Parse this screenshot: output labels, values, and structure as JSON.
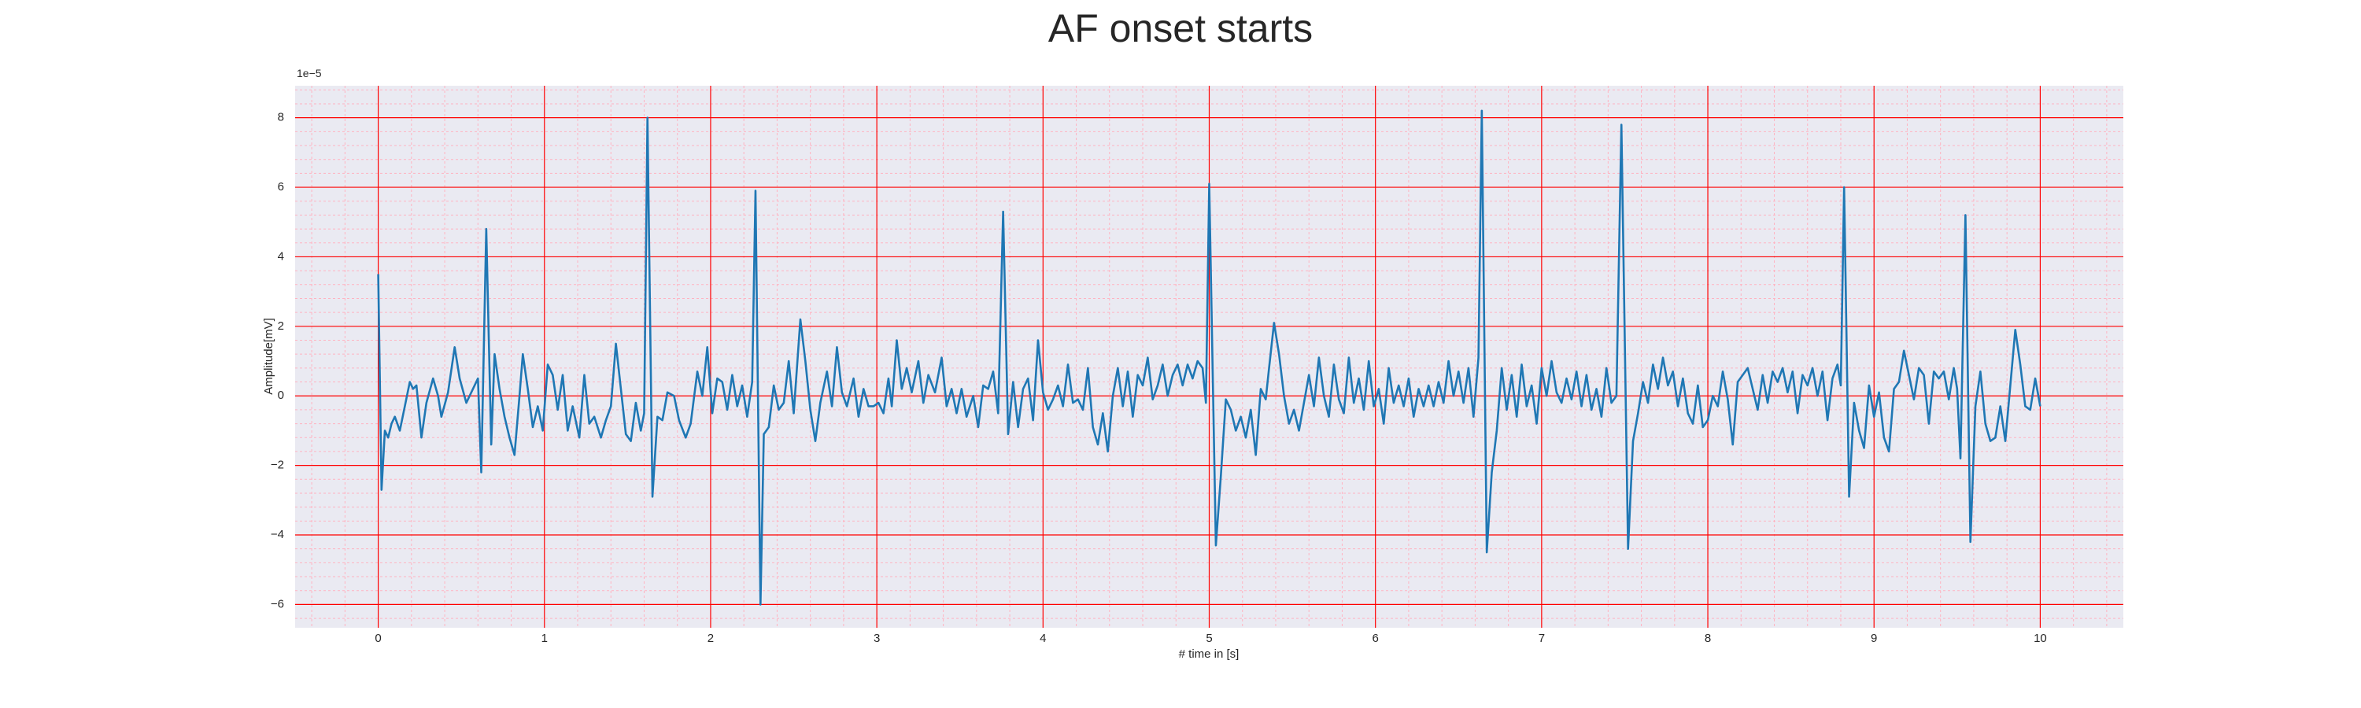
{
  "chart_data": {
    "type": "line",
    "title": "AF onset starts",
    "xlabel": "# time in [s]",
    "ylabel": "Amplitude[mV]",
    "y_offset_text": "1e−5",
    "xlim": [
      -0.5,
      10.5
    ],
    "ylim": [
      -6.67,
      8.92
    ],
    "xticks": [
      0,
      1,
      2,
      3,
      4,
      5,
      6,
      7,
      8,
      9,
      10
    ],
    "yticks": [
      {
        "value": -6,
        "label": "−6"
      },
      {
        "value": -4,
        "label": "−4"
      },
      {
        "value": -2,
        "label": "−2"
      },
      0,
      2,
      4,
      6,
      8
    ],
    "minor_xticks": [
      -0.4,
      -0.2,
      0.2,
      0.4,
      0.6,
      0.8,
      1.2,
      1.4,
      1.6,
      1.8,
      2.2,
      2.4,
      2.6,
      2.8,
      3.2,
      3.4,
      3.6,
      3.8,
      4.2,
      4.4,
      4.6,
      4.8,
      5.2,
      5.4,
      5.6,
      5.8,
      6.2,
      6.4,
      6.6,
      6.8,
      7.2,
      7.4,
      7.6,
      7.8,
      8.2,
      8.4,
      8.6,
      8.8,
      9.2,
      9.4,
      9.6,
      9.8,
      10.2,
      10.4
    ],
    "minor_yticks": [
      -6.4,
      -5.6,
      -5.2,
      -4.8,
      -4.4,
      -3.6,
      -3.2,
      -2.8,
      -2.4,
      -1.6,
      -1.2,
      -0.8,
      -0.4,
      0.4,
      0.8,
      1.2,
      1.6,
      2.4,
      2.8,
      3.2,
      3.6,
      4.4,
      4.8,
      5.2,
      5.6,
      6.4,
      6.8,
      7.2,
      7.6,
      8.4,
      8.8
    ],
    "grid": true,
    "grid_color": "#ff0000",
    "minor_grid_color": "#ffb3c1",
    "background": "#eaeaf2",
    "x": [
      0,
      0.02,
      0.04,
      0.06,
      0.08,
      0.1,
      0.13,
      0.16,
      0.19,
      0.21,
      0.23,
      0.26,
      0.29,
      0.33,
      0.36,
      0.38,
      0.42,
      0.46,
      0.49,
      0.53,
      0.56,
      0.6,
      0.62,
      0.65,
      0.68,
      0.7,
      0.73,
      0.76,
      0.79,
      0.82,
      0.85,
      0.87,
      0.9,
      0.93,
      0.96,
      0.99,
      1.02,
      1.05,
      1.08,
      1.11,
      1.14,
      1.17,
      1.21,
      1.24,
      1.27,
      1.3,
      1.34,
      1.37,
      1.4,
      1.43,
      1.46,
      1.49,
      1.52,
      1.55,
      1.58,
      1.6,
      1.62,
      1.65,
      1.68,
      1.71,
      1.74,
      1.78,
      1.81,
      1.85,
      1.88,
      1.92,
      1.95,
      1.98,
      2.01,
      2.04,
      2.07,
      2.1,
      2.13,
      2.16,
      2.19,
      2.22,
      2.25,
      2.27,
      2.3,
      2.32,
      2.35,
      2.38,
      2.41,
      2.44,
      2.47,
      2.5,
      2.54,
      2.57,
      2.6,
      2.63,
      2.66,
      2.7,
      2.73,
      2.76,
      2.79,
      2.82,
      2.86,
      2.89,
      2.92,
      2.95,
      2.98,
      3.01,
      3.04,
      3.07,
      3.09,
      3.12,
      3.15,
      3.18,
      3.21,
      3.25,
      3.28,
      3.31,
      3.35,
      3.39,
      3.42,
      3.45,
      3.48,
      3.51,
      3.54,
      3.58,
      3.61,
      3.64,
      3.67,
      3.7,
      3.73,
      3.76,
      3.79,
      3.82,
      3.85,
      3.88,
      3.91,
      3.94,
      3.97,
      4.0,
      4.03,
      4.06,
      4.09,
      4.12,
      4.15,
      4.18,
      4.21,
      4.24,
      4.27,
      4.3,
      4.33,
      4.36,
      4.39,
      4.42,
      4.45,
      4.48,
      4.51,
      4.54,
      4.57,
      4.6,
      4.63,
      4.66,
      4.69,
      4.72,
      4.75,
      4.78,
      4.81,
      4.84,
      4.87,
      4.9,
      4.93,
      4.96,
      4.98,
      5.0,
      5.04,
      5.07,
      5.1,
      5.13,
      5.16,
      5.19,
      5.22,
      5.25,
      5.28,
      5.31,
      5.34,
      5.36,
      5.39,
      5.42,
      5.45,
      5.48,
      5.51,
      5.54,
      5.57,
      5.6,
      5.63,
      5.66,
      5.69,
      5.72,
      5.75,
      5.78,
      5.81,
      5.84,
      5.87,
      5.9,
      5.93,
      5.96,
      5.99,
      6.02,
      6.05,
      6.08,
      6.11,
      6.14,
      6.17,
      6.2,
      6.23,
      6.26,
      6.29,
      6.32,
      6.35,
      6.38,
      6.41,
      6.44,
      6.47,
      6.5,
      6.53,
      6.56,
      6.59,
      6.62,
      6.64,
      6.67,
      6.7,
      6.73,
      6.76,
      6.79,
      6.82,
      6.85,
      6.88,
      6.91,
      6.94,
      6.97,
      7.0,
      7.03,
      7.06,
      7.09,
      7.12,
      7.15,
      7.18,
      7.21,
      7.24,
      7.27,
      7.3,
      7.33,
      7.36,
      7.39,
      7.42,
      7.45,
      7.48,
      7.52,
      7.55,
      7.58,
      7.61,
      7.64,
      7.67,
      7.7,
      7.73,
      7.76,
      7.79,
      7.82,
      7.85,
      7.88,
      7.91,
      7.94,
      7.97,
      8.0,
      8.03,
      8.06,
      8.09,
      8.12,
      8.15,
      8.18,
      8.21,
      8.24,
      8.27,
      8.3,
      8.33,
      8.36,
      8.39,
      8.42,
      8.45,
      8.48,
      8.51,
      8.54,
      8.57,
      8.6,
      8.63,
      8.66,
      8.69,
      8.72,
      8.75,
      8.78,
      8.8,
      8.82,
      8.85,
      8.88,
      8.91,
      8.94,
      8.97,
      9.0,
      9.03,
      9.06,
      9.09,
      9.12,
      9.15,
      9.18,
      9.21,
      9.24,
      9.27,
      9.3,
      9.33,
      9.36,
      9.39,
      9.42,
      9.45,
      9.48,
      9.5,
      9.52,
      9.55,
      9.58,
      9.61,
      9.64,
      9.67,
      9.7,
      9.73,
      9.76,
      9.79,
      9.82,
      9.85,
      9.88,
      9.91,
      9.94,
      9.97,
      10.0
    ],
    "series": [
      {
        "color": "#1f77b4",
        "values": [
          3.5,
          -2.7,
          -1.0,
          -1.2,
          -0.8,
          -0.6,
          -1.0,
          -0.3,
          0.4,
          0.2,
          0.3,
          -1.2,
          -0.2,
          0.5,
          0.0,
          -0.6,
          0.1,
          1.4,
          0.5,
          -0.2,
          0.1,
          0.5,
          -2.2,
          4.8,
          -1.4,
          1.2,
          0.2,
          -0.6,
          -1.2,
          -1.7,
          0.0,
          1.2,
          0.2,
          -0.9,
          -0.3,
          -1.0,
          0.9,
          0.6,
          -0.4,
          0.6,
          -1.0,
          -0.3,
          -1.2,
          0.6,
          -0.8,
          -0.6,
          -1.2,
          -0.7,
          -0.3,
          1.5,
          0.2,
          -1.1,
          -1.3,
          -0.2,
          -1.0,
          -0.5,
          8.0,
          -2.9,
          -0.6,
          -0.7,
          0.1,
          0.0,
          -0.7,
          -1.2,
          -0.8,
          0.7,
          0.0,
          1.4,
          -0.5,
          0.5,
          0.4,
          -0.4,
          0.6,
          -0.3,
          0.3,
          -0.6,
          0.4,
          5.9,
          -6.0,
          -1.1,
          -0.9,
          0.3,
          -0.4,
          -0.2,
          1.0,
          -0.5,
          2.2,
          1.0,
          -0.4,
          -1.3,
          -0.2,
          0.7,
          -0.3,
          1.4,
          0.1,
          -0.3,
          0.5,
          -0.6,
          0.2,
          -0.3,
          -0.3,
          -0.2,
          -0.5,
          0.5,
          -0.3,
          1.6,
          0.2,
          0.8,
          0.1,
          1.0,
          -0.2,
          0.6,
          0.1,
          1.1,
          -0.3,
          0.2,
          -0.5,
          0.2,
          -0.6,
          0.0,
          -0.9,
          0.3,
          0.2,
          0.7,
          -0.5,
          5.3,
          -1.1,
          0.4,
          -0.9,
          0.2,
          0.5,
          -0.7,
          1.6,
          0.1,
          -0.4,
          -0.1,
          0.3,
          -0.3,
          0.9,
          -0.2,
          -0.1,
          -0.4,
          0.8,
          -0.9,
          -1.4,
          -0.5,
          -1.6,
          0.0,
          0.8,
          -0.3,
          0.7,
          -0.6,
          0.6,
          0.3,
          1.1,
          -0.1,
          0.3,
          0.9,
          0.0,
          0.6,
          0.9,
          0.3,
          0.9,
          0.5,
          1.0,
          0.8,
          -0.2,
          6.1,
          -4.3,
          -2.3,
          -0.1,
          -0.4,
          -1.0,
          -0.6,
          -1.2,
          -0.4,
          -1.7,
          0.2,
          -0.1,
          0.8,
          2.1,
          1.2,
          0.0,
          -0.8,
          -0.4,
          -1.0,
          -0.2,
          0.6,
          -0.3,
          1.1,
          0.0,
          -0.6,
          0.9,
          -0.1,
          -0.5,
          1.1,
          -0.2,
          0.5,
          -0.4,
          1.0,
          -0.3,
          0.2,
          -0.8,
          0.8,
          -0.2,
          0.3,
          -0.3,
          0.5,
          -0.6,
          0.2,
          -0.3,
          0.3,
          -0.3,
          0.4,
          -0.2,
          1.0,
          0.0,
          0.7,
          -0.2,
          0.8,
          -0.6,
          1.1,
          8.2,
          -4.5,
          -2.2,
          -1.0,
          0.8,
          -0.4,
          0.6,
          -0.6,
          0.9,
          -0.3,
          0.3,
          -0.8,
          0.8,
          0.0,
          1.0,
          0.1,
          -0.2,
          0.5,
          -0.1,
          0.7,
          -0.3,
          0.6,
          -0.4,
          0.2,
          -0.6,
          0.8,
          -0.2,
          0.0,
          7.8,
          -4.4,
          -1.3,
          -0.5,
          0.4,
          -0.2,
          0.9,
          0.2,
          1.1,
          0.3,
          0.7,
          -0.3,
          0.5,
          -0.5,
          -0.8,
          0.3,
          -0.9,
          -0.7,
          0.0,
          -0.3,
          0.7,
          -0.1,
          -1.4,
          0.4,
          0.6,
          0.8,
          0.2,
          -0.4,
          0.6,
          -0.2,
          0.7,
          0.4,
          0.8,
          0.1,
          0.7,
          -0.5,
          0.6,
          0.3,
          0.8,
          0.0,
          0.7,
          -0.7,
          0.5,
          0.9,
          0.3,
          6.0,
          -2.9,
          -0.2,
          -1.0,
          -1.5,
          0.3,
          -0.6,
          0.1,
          -1.2,
          -1.6,
          0.2,
          0.4,
          1.3,
          0.6,
          -0.1,
          0.8,
          0.6,
          -0.8,
          0.7,
          0.5,
          0.7,
          -0.1,
          0.8,
          0.2,
          -1.8,
          5.2,
          -4.2,
          -0.3,
          0.7,
          -0.8,
          -1.3,
          -1.2,
          -0.3,
          -1.3,
          0.3,
          1.9,
          0.9,
          -0.3,
          -0.4,
          0.5,
          -0.3
        ]
      }
    ]
  }
}
